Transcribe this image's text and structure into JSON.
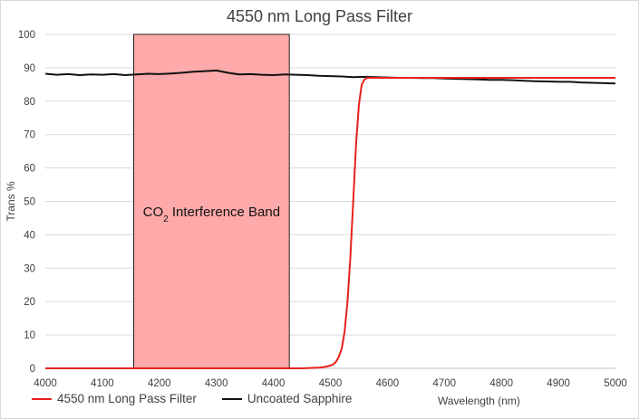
{
  "chart_data": {
    "type": "line",
    "title": "4550 nm Long Pass Filter",
    "xlabel": "Wavelength (nm)",
    "ylabel": "Trans %",
    "xlim": [
      4000,
      5000
    ],
    "ylim": [
      0,
      100
    ],
    "xticks": [
      4000,
      4100,
      4200,
      4300,
      4400,
      4500,
      4600,
      4700,
      4800,
      4900,
      5000
    ],
    "yticks": [
      0,
      10,
      20,
      30,
      40,
      50,
      60,
      70,
      80,
      90,
      100
    ],
    "grid": "horizontal",
    "legend_position": "bottom-left",
    "band": {
      "label_main": "CO",
      "label_sub": "2",
      "label_rest": " Interference Band",
      "x_start": 4155,
      "x_end": 4428,
      "color": "#ffaaaa"
    },
    "series": [
      {
        "name": "4550 nm Long Pass Filter",
        "color": "#e8201c",
        "x": [
          4000,
          4450,
          4480,
          4490,
          4500,
          4505,
          4510,
          4515,
          4520,
          4525,
          4530,
          4535,
          4540,
          4545,
          4550,
          4555,
          4560,
          4565,
          4570,
          4580,
          4600,
          4650,
          4700,
          4750,
          4800,
          4850,
          4900,
          4950,
          5000
        ],
        "y": [
          0,
          0,
          0.2,
          0.4,
          0.8,
          1.2,
          2,
          3.5,
          6,
          11,
          20,
          33,
          50,
          67,
          79,
          85,
          86.5,
          87,
          87,
          87,
          87,
          87,
          87,
          87,
          87,
          87,
          87,
          87,
          87
        ]
      },
      {
        "name": "Uncoated Sapphire",
        "color": "#111111",
        "x": [
          4000,
          4020,
          4040,
          4060,
          4080,
          4100,
          4120,
          4140,
          4160,
          4180,
          4200,
          4220,
          4240,
          4260,
          4280,
          4300,
          4320,
          4340,
          4360,
          4380,
          4400,
          4420,
          4440,
          4460,
          4480,
          4500,
          4520,
          4540,
          4560,
          4580,
          4600,
          4620,
          4640,
          4660,
          4680,
          4700,
          4720,
          4740,
          4760,
          4780,
          4800,
          4820,
          4840,
          4860,
          4880,
          4900,
          4920,
          4940,
          4960,
          4980,
          5000
        ],
        "y": [
          88.2,
          87.9,
          88.1,
          87.8,
          88.0,
          87.9,
          88.1,
          87.8,
          88.0,
          88.2,
          88.1,
          88.3,
          88.5,
          88.8,
          89.0,
          89.2,
          88.5,
          88.0,
          88.1,
          87.9,
          87.8,
          88.0,
          87.9,
          87.8,
          87.6,
          87.5,
          87.4,
          87.2,
          87.3,
          87.2,
          87.1,
          87.0,
          87.0,
          86.9,
          86.9,
          86.8,
          86.7,
          86.6,
          86.5,
          86.4,
          86.4,
          86.3,
          86.1,
          86.0,
          85.9,
          85.8,
          85.8,
          85.6,
          85.5,
          85.4,
          85.3
        ]
      }
    ]
  }
}
